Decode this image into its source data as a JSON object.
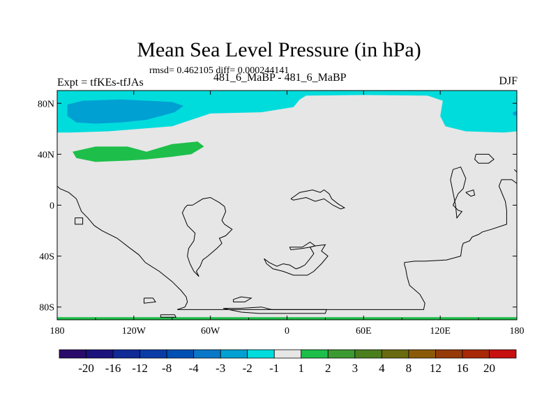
{
  "figure": {
    "title": "Mean Sea Level Pressure (in hPa)",
    "stats": "rmsd= 0.462105  diff= 0.000244141",
    "left_label": "Expt = tfKEs-tfJAs",
    "center_label": "481_6_MaBP - 481_6_MaBP",
    "right_label": "DJF"
  },
  "map_data": {
    "type": "contour-map",
    "projection": "cylindrical-equidistant",
    "lon_range": [
      -180,
      180
    ],
    "lat_range": [
      -90,
      90
    ],
    "x_ticks": [
      {
        "value": -180,
        "label": "180"
      },
      {
        "value": -120,
        "label": "120W"
      },
      {
        "value": -60,
        "label": "60W"
      },
      {
        "value": 0,
        "label": "0"
      },
      {
        "value": 60,
        "label": "60E"
      },
      {
        "value": 120,
        "label": "120E"
      },
      {
        "value": 180,
        "label": "180"
      }
    ],
    "y_ticks": [
      {
        "value": 80,
        "label": "80N"
      },
      {
        "value": 40,
        "label": "40N"
      },
      {
        "value": 0,
        "label": "0"
      },
      {
        "value": -40,
        "label": "40S"
      },
      {
        "value": -80,
        "label": "80S"
      }
    ],
    "background_color": "#e6e6e6",
    "regions": [
      {
        "name": "arctic-negative-band",
        "level": "-2 to -1",
        "color": "#00dcdc",
        "polygon": [
          [
            -180,
            90
          ],
          [
            180,
            90
          ],
          [
            180,
            58
          ],
          [
            170,
            57
          ],
          [
            140,
            58
          ],
          [
            124,
            62
          ],
          [
            120,
            70
          ],
          [
            122,
            82
          ],
          [
            110,
            86
          ],
          [
            60,
            86.5
          ],
          [
            15,
            86
          ],
          [
            10,
            83
          ],
          [
            5,
            77
          ],
          [
            -20,
            73
          ],
          [
            -60,
            72
          ],
          [
            -90,
            62
          ],
          [
            -140,
            58
          ],
          [
            -170,
            57
          ],
          [
            -180,
            57
          ]
        ]
      },
      {
        "name": "north-pacific-negative-core",
        "level": "-3 to -2",
        "color": "#00a0d2",
        "polygon": [
          [
            -172,
            79
          ],
          [
            -160,
            82
          ],
          [
            -130,
            83
          ],
          [
            -90,
            81
          ],
          [
            -81,
            78
          ],
          [
            -88,
            73
          ],
          [
            -110,
            67
          ],
          [
            -130,
            65
          ],
          [
            -150,
            64
          ],
          [
            -165,
            65
          ],
          [
            -172,
            70
          ]
        ]
      },
      {
        "name": "east-arctic-negative-core",
        "level": "-3 to -2",
        "color": "#00a0d2",
        "polygon": [
          [
            180,
            74
          ],
          [
            177,
            73
          ],
          [
            177,
            71
          ],
          [
            180,
            70
          ]
        ]
      },
      {
        "name": "north-pacific-positive",
        "level": "1 to 2",
        "color": "#1dbf4a",
        "polygon": [
          [
            -168,
            42
          ],
          [
            -150,
            46
          ],
          [
            -125,
            46
          ],
          [
            -110,
            42
          ],
          [
            -90,
            48
          ],
          [
            -70,
            50
          ],
          [
            -65,
            46
          ],
          [
            -75,
            40
          ],
          [
            -90,
            38
          ],
          [
            -110,
            36
          ],
          [
            -125,
            35
          ],
          [
            -150,
            34
          ],
          [
            -165,
            37
          ]
        ]
      },
      {
        "name": "south-pole-positive-strip",
        "level": "1 to 2",
        "color": "#1dbf4a",
        "polygon": [
          [
            -180,
            -88
          ],
          [
            180,
            -88
          ],
          [
            180,
            -90
          ],
          [
            -180,
            -90
          ]
        ]
      }
    ],
    "coastlines": [
      [
        [
          -180,
          15
        ],
        [
          -178,
          13
        ],
        [
          -171,
          10
        ],
        [
          -165,
          5
        ],
        [
          -163,
          0
        ],
        [
          -161,
          -5
        ],
        [
          -156,
          -10
        ],
        [
          -151,
          -16
        ],
        [
          -145,
          -20
        ],
        [
          -133,
          -26
        ],
        [
          -124,
          -33
        ],
        [
          -116,
          -39
        ],
        [
          -111,
          -45
        ],
        [
          -100,
          -52
        ],
        [
          -90,
          -60
        ],
        [
          -83,
          -67
        ],
        [
          -79,
          -72
        ],
        [
          -78,
          -76
        ],
        [
          -80,
          -80
        ],
        [
          -86,
          -82
        ]
      ],
      [
        [
          -86,
          -82
        ],
        [
          -20,
          -82
        ],
        [
          20,
          -82
        ],
        [
          60,
          -82
        ],
        [
          90,
          -82
        ],
        [
          107,
          -82
        ],
        [
          108,
          -77
        ],
        [
          104,
          -70
        ],
        [
          96,
          -63
        ],
        [
          94,
          -56
        ],
        [
          93,
          -50
        ],
        [
          92,
          -47
        ],
        [
          92,
          -45
        ],
        [
          100,
          -44
        ],
        [
          108,
          -44
        ],
        [
          125,
          -43
        ],
        [
          136,
          -40
        ],
        [
          137,
          -33
        ],
        [
          138,
          -30
        ],
        [
          143,
          -28
        ],
        [
          145,
          -25
        ],
        [
          150,
          -23
        ],
        [
          153,
          -21
        ],
        [
          160,
          -19
        ],
        [
          172,
          -15
        ],
        [
          172,
          -4
        ],
        [
          171,
          3
        ],
        [
          166,
          15
        ],
        [
          168,
          20
        ],
        [
          176,
          20
        ],
        [
          180,
          17
        ]
      ],
      [
        [
          -74,
          0
        ],
        [
          -66,
          5
        ],
        [
          -60,
          6
        ],
        [
          -53,
          2
        ],
        [
          -49,
          -1
        ],
        [
          -48,
          -5
        ],
        [
          -51,
          -12
        ],
        [
          -49,
          -15
        ],
        [
          -46,
          -17
        ],
        [
          -43,
          -19
        ],
        [
          -48,
          -24
        ],
        [
          -53,
          -26
        ],
        [
          -51,
          -30
        ],
        [
          -55,
          -34
        ],
        [
          -62,
          -40
        ],
        [
          -66,
          -43
        ],
        [
          -68,
          -48
        ],
        [
          -71,
          -52
        ],
        [
          -69,
          -56
        ],
        [
          -73,
          -52
        ],
        [
          -76,
          -46
        ],
        [
          -78,
          -40
        ],
        [
          -77,
          -34
        ],
        [
          -73,
          -28
        ],
        [
          -72,
          -22
        ],
        [
          -78,
          -16
        ],
        [
          -82,
          -6
        ],
        [
          -80,
          -2
        ],
        [
          -78,
          0
        ],
        [
          -74,
          0
        ]
      ],
      [
        [
          3,
          5
        ],
        [
          10,
          10
        ],
        [
          20,
          12
        ],
        [
          26,
          10
        ],
        [
          29,
          12
        ],
        [
          33,
          9
        ],
        [
          35,
          5
        ],
        [
          40,
          1
        ],
        [
          45,
          -2
        ],
        [
          42,
          -3
        ],
        [
          36,
          0
        ],
        [
          29,
          5
        ],
        [
          22,
          3
        ],
        [
          15,
          6
        ],
        [
          5,
          4
        ],
        [
          3,
          5
        ]
      ],
      [
        [
          -18,
          -42
        ],
        [
          -14,
          -45
        ],
        [
          -8,
          -48
        ],
        [
          -3,
          -46
        ],
        [
          2,
          -47
        ],
        [
          7,
          -50
        ],
        [
          10,
          -49
        ],
        [
          14,
          -47
        ],
        [
          18,
          -42
        ],
        [
          21,
          -38
        ],
        [
          18,
          -33
        ],
        [
          22,
          -32
        ],
        [
          30,
          -31
        ],
        [
          27,
          -36
        ],
        [
          32,
          -40
        ],
        [
          27,
          -46
        ],
        [
          21,
          -52
        ],
        [
          16,
          -55
        ],
        [
          5,
          -55
        ],
        [
          -3,
          -52
        ],
        [
          -11,
          -50
        ],
        [
          -16,
          -46
        ],
        [
          -18,
          -42
        ]
      ],
      [
        [
          2,
          -33
        ],
        [
          12,
          -33
        ],
        [
          18,
          -29
        ],
        [
          22,
          -32
        ],
        [
          18,
          -33
        ],
        [
          12,
          -34
        ],
        [
          3,
          -35
        ],
        [
          2,
          -33
        ]
      ],
      [
        [
          -42,
          -74
        ],
        [
          -36,
          -72
        ],
        [
          -28,
          -73
        ],
        [
          -33,
          -76
        ],
        [
          -42,
          -76
        ],
        [
          -42,
          -74
        ]
      ],
      [
        [
          -50,
          -81
        ],
        [
          -37,
          -81
        ],
        [
          -20,
          -80
        ],
        [
          -12,
          -82
        ],
        [
          10,
          -82
        ],
        [
          31,
          -82
        ],
        [
          30,
          -85
        ],
        [
          10,
          -85
        ],
        [
          -12,
          -85
        ],
        [
          -22,
          -85
        ],
        [
          -36,
          -84
        ],
        [
          -50,
          -81
        ]
      ],
      [
        [
          -112,
          -73
        ],
        [
          -105,
          -73
        ],
        [
          -103,
          -76
        ],
        [
          -112,
          -77
        ],
        [
          -112,
          -73
        ]
      ],
      [
        [
          -99,
          -86
        ],
        [
          -88,
          -86
        ],
        [
          -87,
          -88
        ],
        [
          -99,
          -88
        ],
        [
          -99,
          -86
        ]
      ],
      [
        [
          148,
          40
        ],
        [
          158,
          40
        ],
        [
          162,
          36
        ],
        [
          158,
          33
        ],
        [
          150,
          33
        ],
        [
          147,
          36
        ],
        [
          148,
          40
        ]
      ],
      [
        [
          130,
          28
        ],
        [
          136,
          30
        ],
        [
          140,
          21
        ],
        [
          138,
          13
        ],
        [
          134,
          9
        ],
        [
          130,
          0
        ],
        [
          134,
          -4
        ],
        [
          137,
          -5
        ],
        [
          133,
          -10
        ],
        [
          132,
          0
        ],
        [
          130,
          10
        ],
        [
          128,
          20
        ],
        [
          130,
          28
        ]
      ],
      [
        [
          178,
          28
        ],
        [
          180,
          26
        ]
      ],
      [
        [
          -166,
          -10
        ],
        [
          -160,
          -10
        ],
        [
          -160,
          -15
        ],
        [
          -166,
          -15
        ],
        [
          -166,
          -10
        ]
      ],
      [
        [
          140,
          10
        ],
        [
          146,
          12
        ],
        [
          147,
          8
        ],
        [
          144,
          7
        ],
        [
          140,
          10
        ]
      ]
    ]
  },
  "colorbar": {
    "labels": [
      "-20",
      "-16",
      "-12",
      "-8",
      "-4",
      "-3",
      "-2",
      "-1",
      "1",
      "2",
      "3",
      "4",
      "8",
      "12",
      "16",
      "20"
    ],
    "colors": [
      "#2a0a6b",
      "#1c127d",
      "#102a96",
      "#0a3ca8",
      "#0050b4",
      "#0a78c8",
      "#00a0d2",
      "#00dcdc",
      "#e6e6e6",
      "#1dbf4a",
      "#3c9a32",
      "#4a7f1e",
      "#6a6a10",
      "#8a5a08",
      "#963a08",
      "#a82808",
      "#c81010"
    ]
  }
}
